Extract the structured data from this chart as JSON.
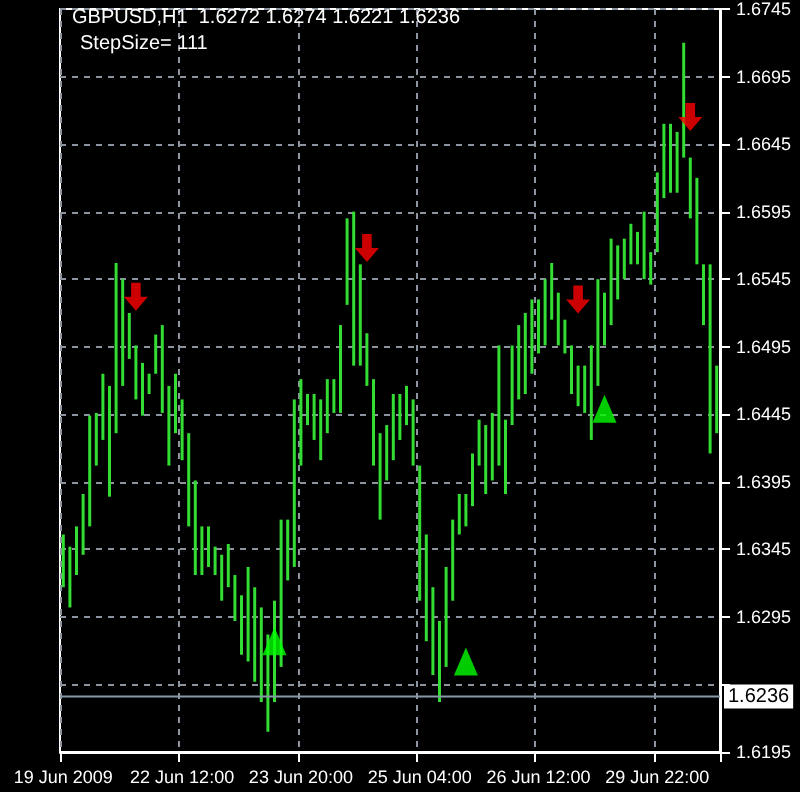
{
  "chart_data": {
    "type": "bar",
    "title": "GBPUSD,H1  1.6272 1.6274 1.6221 1.6236",
    "subtitle": "StepSize= 111",
    "categories": [
      "19 Jun 2009",
      null,
      null,
      null,
      null,
      null,
      null,
      null,
      null,
      null,
      null,
      null,
      null,
      null,
      null,
      null,
      null,
      null,
      "22 Jun 12:00",
      null,
      null,
      null,
      null,
      null,
      null,
      null,
      null,
      null,
      null,
      null,
      null,
      null,
      null,
      null,
      null,
      null,
      "23 Jun 20:00",
      null,
      null,
      null,
      null,
      null,
      null,
      null,
      null,
      null,
      null,
      null,
      null,
      null,
      null,
      null,
      null,
      null,
      "25 Jun 04:00",
      null,
      null,
      null,
      null,
      null,
      null,
      null,
      null,
      null,
      null,
      null,
      null,
      null,
      null,
      null,
      null,
      null,
      "26 Jun 12:00",
      null,
      null,
      null,
      null,
      null,
      null,
      null,
      null,
      null,
      null,
      null,
      null,
      null,
      null,
      null,
      null,
      null,
      "29 Jun 22:00",
      null,
      null,
      null,
      null,
      null,
      null,
      null,
      null,
      null
    ],
    "series": [
      {
        "color": "#33dd33",
        "base": [
          1.6317,
          1.6302,
          1.6326,
          1.6341,
          1.6362,
          1.6407,
          1.6426,
          1.6384,
          1.6431,
          1.6466,
          1.6486,
          1.6456,
          1.6444,
          1.646,
          1.6475,
          1.6446,
          1.6407,
          1.6431,
          1.6411,
          1.6362,
          1.6326,
          1.6326,
          1.6332,
          1.6326,
          1.6307,
          1.6317,
          1.6292,
          1.6267,
          1.6262,
          1.6247,
          1.6232,
          1.621,
          1.6232,
          1.6258,
          1.6322,
          1.6332,
          1.6407,
          1.6437,
          1.6426,
          1.6411,
          1.6431,
          1.6446,
          1.6446,
          1.6526,
          1.6481,
          1.6481,
          1.6466,
          1.6407,
          1.6367,
          1.6396,
          1.6411,
          1.6426,
          1.6437,
          1.6407,
          1.6307,
          1.6277,
          1.6252,
          1.6232,
          1.6258,
          1.6307,
          1.6356,
          1.6362,
          1.6377,
          1.6407,
          1.6386,
          1.6396,
          1.6407,
          1.6386,
          1.6437,
          1.6456,
          1.646,
          1.6475,
          1.649,
          1.6496,
          1.6515,
          1.6496,
          1.649,
          1.646,
          1.6451,
          1.6446,
          1.6426,
          1.6466,
          1.6496,
          1.6511,
          1.653,
          1.6545,
          1.6556,
          1.6556,
          1.6545,
          1.6541,
          1.6565,
          1.6605,
          1.6609,
          1.6609,
          1.6635,
          1.659,
          1.6556,
          1.6511,
          1.6416,
          1.6431
        ],
        "values": [
          0.0039,
          0.0045,
          0.0036,
          0.0045,
          0.0082,
          0.0039,
          0.0049,
          0.0082,
          0.0126,
          0.0079,
          0.0034,
          0.004,
          0.0039,
          0.0015,
          0.0029,
          0.0065,
          0.0059,
          0.0044,
          0.0045,
          0.0069,
          0.007,
          0.0036,
          0.003,
          0.0021,
          0.0034,
          0.0032,
          0.0034,
          0.0044,
          0.007,
          0.007,
          0.007,
          0.0072,
          0.0075,
          0.0109,
          0.0045,
          0.0124,
          0.0064,
          0.0023,
          0.0034,
          0.0045,
          0.004,
          0.0025,
          0.0065,
          0.0064,
          0.0114,
          0.0075,
          0.0039,
          0.0064,
          0.0064,
          0.0041,
          0.0049,
          0.0034,
          0.0029,
          0.0049,
          0.01,
          0.0079,
          0.0065,
          0.006,
          0.0074,
          0.006,
          0.003,
          0.0024,
          0.0039,
          0.0034,
          0.0051,
          0.005,
          0.0089,
          0.0055,
          0.0059,
          0.0055,
          0.006,
          0.0055,
          0.004,
          0.0049,
          0.0042,
          0.0039,
          0.0025,
          0.0036,
          0.003,
          0.0035,
          0.007,
          0.0079,
          0.0039,
          0.0064,
          0.004,
          0.003,
          0.003,
          0.0024,
          0.005,
          0.0024,
          0.0059,
          0.0055,
          0.0051,
          0.0045,
          0.0085,
          0.0045,
          0.0064,
          0.0045,
          0.014,
          0.005
        ]
      },
      {
        "type": "scatter",
        "color": "#ff0000",
        "values": [
          null,
          null,
          null,
          null,
          null,
          null,
          null,
          null,
          null,
          null,
          null,
          1.6532,
          null,
          null,
          null,
          null,
          null,
          null,
          null,
          null,
          null,
          null,
          null,
          null,
          null,
          null,
          null,
          null,
          null,
          null,
          null,
          null,
          null,
          null,
          null,
          null,
          null,
          null,
          null,
          null,
          null,
          null,
          null,
          null,
          null,
          null,
          1.6568,
          null,
          null,
          null,
          null,
          null,
          null,
          null,
          null,
          null,
          null,
          null,
          null,
          null,
          null,
          null,
          null,
          null,
          null,
          null,
          null,
          null,
          null,
          null,
          null,
          null,
          null,
          null,
          null,
          null,
          null,
          null,
          1.653,
          null,
          null,
          null,
          null,
          null,
          null,
          null,
          null,
          null,
          null,
          null,
          null,
          null,
          null,
          null,
          null,
          1.6665,
          null,
          null,
          null,
          null
        ]
      },
      {
        "type": "scatter",
        "color": "#00ff00",
        "marker": "triangle",
        "values": [
          null,
          null,
          null,
          null,
          null,
          null,
          null,
          null,
          null,
          null,
          null,
          null,
          null,
          null,
          null,
          null,
          null,
          null,
          null,
          null,
          null,
          null,
          null,
          null,
          null,
          null,
          null,
          null,
          null,
          null,
          null,
          null,
          1.6277,
          null,
          null,
          null,
          null,
          null,
          null,
          null,
          null,
          null,
          null,
          null,
          null,
          null,
          null,
          null,
          null,
          null,
          null,
          null,
          null,
          null,
          null,
          null,
          null,
          null,
          null,
          null,
          null,
          1.6262,
          null,
          null,
          null,
          null,
          null,
          null,
          null,
          null,
          null,
          null,
          null,
          null,
          null,
          null,
          null,
          null,
          null,
          null,
          null,
          null,
          1.6449,
          null,
          null,
          null,
          null,
          null,
          null,
          null,
          null,
          null,
          null,
          null,
          null,
          null,
          null,
          null,
          null,
          null
        ]
      }
    ],
    "ylim": [
      1.6195,
      1.6745
    ],
    "yticks": [
      1.6195,
      {
        "value": 1.6245,
        "label": null
      },
      1.6295,
      1.6345,
      1.6395,
      1.6445,
      1.6495,
      1.6545,
      1.6595,
      1.6645,
      1.6695,
      1.6745
    ],
    "ref_lines": [
      {
        "axis": "y",
        "value": 1.6236,
        "label": "1.6236",
        "color": "#8899aa"
      }
    ],
    "grid": true
  }
}
